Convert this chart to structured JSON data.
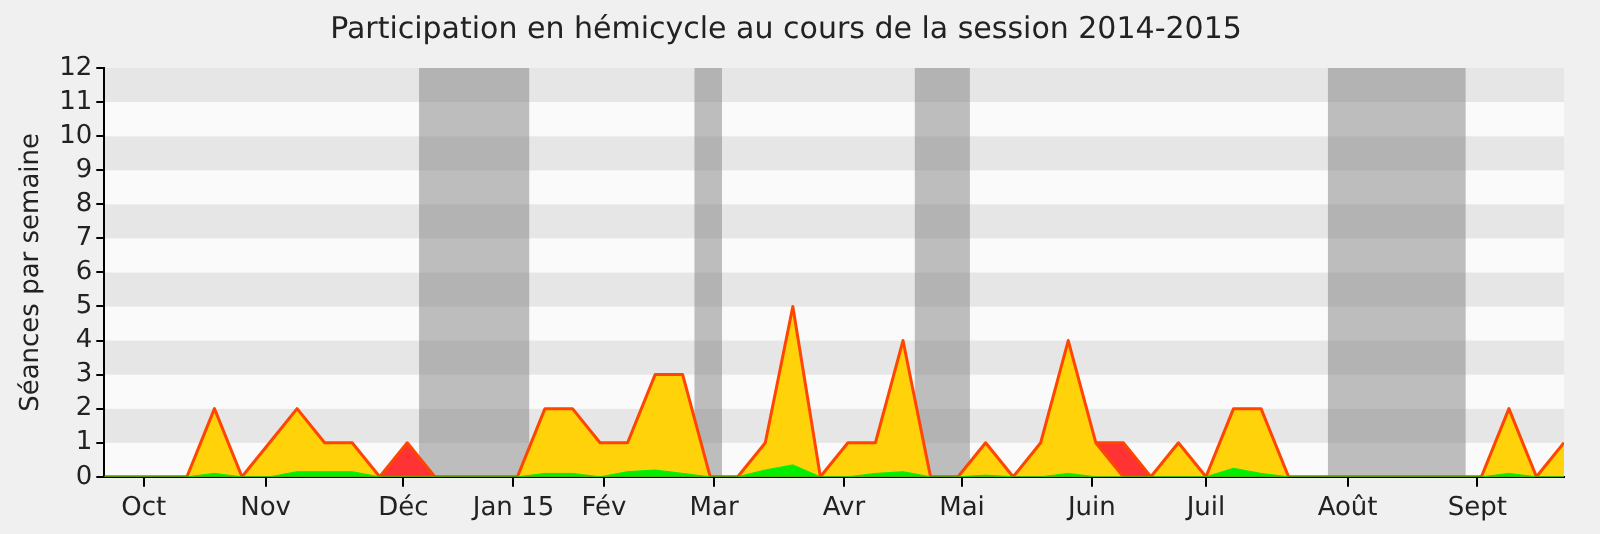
{
  "chart_data": {
    "type": "area",
    "title": "Participation en hémicycle au cours de la session 2014-2015",
    "ylabel": "Séances par semaine",
    "x": [
      "2014-09-27",
      "2014-10-04",
      "2014-10-11",
      "2014-10-18",
      "2014-10-25",
      "2014-11-01",
      "2014-11-08",
      "2014-11-15",
      "2014-11-22",
      "2014-11-29",
      "2014-12-06",
      "2014-12-13",
      "2014-12-20",
      "2014-12-27",
      "2015-01-03",
      "2015-01-10",
      "2015-01-17",
      "2015-01-24",
      "2015-01-31",
      "2015-02-07",
      "2015-02-14",
      "2015-02-21",
      "2015-02-28",
      "2015-03-07",
      "2015-03-14",
      "2015-03-21",
      "2015-03-28",
      "2015-04-04",
      "2015-04-11",
      "2015-04-18",
      "2015-04-25",
      "2015-05-02",
      "2015-05-09",
      "2015-05-16",
      "2015-05-23",
      "2015-05-30",
      "2015-06-06",
      "2015-06-13",
      "2015-06-20",
      "2015-06-27",
      "2015-07-04",
      "2015-07-11",
      "2015-07-18",
      "2015-07-25",
      "2015-08-01",
      "2015-08-08",
      "2015-08-15",
      "2015-08-22",
      "2015-08-29",
      "2015-09-05",
      "2015-09-12",
      "2015-09-19",
      "2015-09-26",
      "2015-10-03"
    ],
    "series": [
      {
        "color": "#00ee00",
        "values": [
          0,
          0,
          0,
          0,
          0.1,
          0,
          0,
          0.15,
          0.15,
          0.15,
          0,
          0,
          0,
          0,
          0,
          0,
          0.1,
          0.1,
          0,
          0.15,
          0.2,
          0.1,
          0,
          0,
          0.2,
          0.35,
          0,
          0,
          0.1,
          0.15,
          0,
          0,
          0.05,
          0,
          0,
          0.1,
          0,
          0,
          0,
          0,
          0,
          0.25,
          0.1,
          0,
          0,
          0,
          0,
          0,
          0,
          0,
          0,
          0.1,
          0,
          0
        ]
      },
      {
        "color": "#ffd20a",
        "values": [
          0,
          0,
          0,
          0,
          2,
          0,
          1,
          2,
          1,
          1,
          0,
          0,
          0,
          0,
          0,
          0,
          2,
          2,
          1,
          1,
          3,
          3,
          0,
          0,
          1,
          5,
          0,
          1,
          1,
          4,
          0,
          0,
          1,
          0,
          1,
          4,
          1,
          0,
          0,
          1,
          0,
          2,
          2,
          0,
          0,
          0,
          0,
          0,
          0,
          0,
          0,
          2,
          0,
          1
        ]
      },
      {
        "color": "#ff3333",
        "values": [
          null,
          null,
          null,
          null,
          null,
          null,
          null,
          null,
          null,
          null,
          0,
          1,
          0,
          null,
          null,
          null,
          null,
          null,
          null,
          null,
          null,
          null,
          null,
          null,
          null,
          null,
          null,
          null,
          null,
          null,
          null,
          null,
          null,
          null,
          null,
          null,
          1,
          1,
          0,
          null,
          null,
          null,
          null,
          null,
          null,
          null,
          null,
          null,
          null,
          null,
          null,
          null,
          null,
          null
        ]
      }
    ],
    "xlim": [
      "2014-09-27",
      "2015-10-03"
    ],
    "xticks": [
      {
        "value": "2014-10-07",
        "label": "Oct"
      },
      {
        "value": "2014-11-07",
        "label": "Nov"
      },
      {
        "value": "2014-12-12",
        "label": "Déc"
      },
      {
        "value": "2015-01-09",
        "label": "Jan 15"
      },
      {
        "value": "2015-02-01",
        "label": "Fév"
      },
      {
        "value": "2015-03-01",
        "label": "Mar"
      },
      {
        "value": "2015-04-03",
        "label": "Avr"
      },
      {
        "value": "2015-05-03",
        "label": "Mai"
      },
      {
        "value": "2015-06-05",
        "label": "Juin"
      },
      {
        "value": "2015-07-04",
        "label": "Juil"
      },
      {
        "value": "2015-08-09",
        "label": "Août"
      },
      {
        "value": "2015-09-11",
        "label": "Sept"
      }
    ],
    "ylim": [
      0,
      12
    ],
    "yticks": [
      0,
      1,
      2,
      3,
      4,
      5,
      6,
      7,
      8,
      9,
      10,
      11,
      12
    ],
    "bands": [
      {
        "axis": "x",
        "from": "2014-12-16",
        "to": "2015-01-13",
        "color": "#808080"
      },
      {
        "axis": "x",
        "from": "2015-02-24",
        "to": "2015-03-03",
        "color": "#808080"
      },
      {
        "axis": "x",
        "from": "2015-04-21",
        "to": "2015-05-05",
        "color": "#808080"
      },
      {
        "axis": "x",
        "from": "2015-08-04",
        "to": "2015-09-08",
        "color": "#808080"
      }
    ],
    "legend": false,
    "marker": "none",
    "line_style": "solid"
  }
}
